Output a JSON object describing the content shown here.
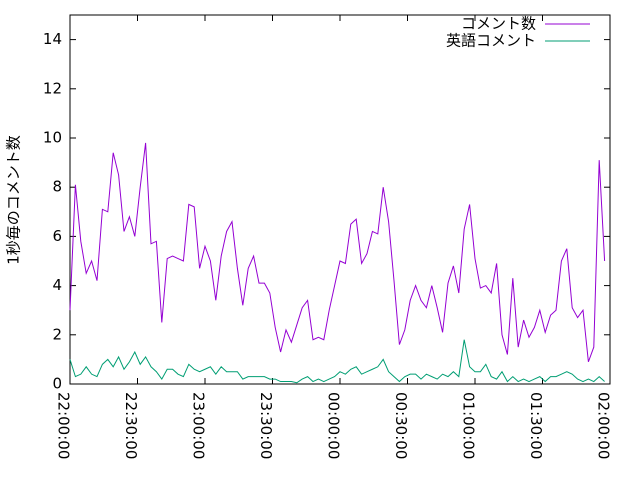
{
  "chart_data": {
    "type": "line",
    "ylabel": "1秒毎のコメント数",
    "x": [
      "22:00:00",
      "22:02:24",
      "22:04:48",
      "22:07:12",
      "22:09:36",
      "22:12:00",
      "22:14:24",
      "22:16:48",
      "22:19:12",
      "22:21:36",
      "22:24:00",
      "22:26:24",
      "22:28:48",
      "22:31:12",
      "22:33:36",
      "22:36:00",
      "22:38:24",
      "22:40:48",
      "22:43:12",
      "22:45:36",
      "22:48:00",
      "22:50:24",
      "22:52:48",
      "22:55:12",
      "22:57:36",
      "23:00:00",
      "23:02:24",
      "23:04:48",
      "23:07:12",
      "23:09:36",
      "23:12:00",
      "23:14:24",
      "23:16:48",
      "23:19:12",
      "23:21:36",
      "23:24:00",
      "23:26:24",
      "23:28:48",
      "23:31:12",
      "23:33:36",
      "23:36:00",
      "23:38:24",
      "23:40:48",
      "23:43:12",
      "23:45:36",
      "23:48:00",
      "23:50:24",
      "23:52:48",
      "23:55:12",
      "23:57:36",
      "00:00:00",
      "00:02:24",
      "00:04:48",
      "00:07:12",
      "00:09:36",
      "00:12:00",
      "00:14:24",
      "00:16:48",
      "00:19:12",
      "00:21:36",
      "00:24:00",
      "00:26:24",
      "00:28:48",
      "00:31:12",
      "00:33:36",
      "00:36:00",
      "00:38:24",
      "00:40:48",
      "00:43:12",
      "00:45:36",
      "00:48:00",
      "00:50:24",
      "00:52:48",
      "00:55:12",
      "00:57:36",
      "01:00:00",
      "01:02:24",
      "01:04:48",
      "01:07:12",
      "01:09:36",
      "01:12:00",
      "01:14:24",
      "01:16:48",
      "01:19:12",
      "01:21:36",
      "01:24:00",
      "01:26:24",
      "01:28:48",
      "01:31:12",
      "01:33:36",
      "01:36:00",
      "01:38:24",
      "01:40:48",
      "01:43:12",
      "01:45:36",
      "01:48:00",
      "01:50:24",
      "01:52:48",
      "01:55:12",
      "01:57:36"
    ],
    "series": [
      {
        "name": "コメント数",
        "color": "#9400d3",
        "values": [
          3.0,
          8.1,
          5.8,
          4.5,
          5.0,
          4.2,
          7.1,
          7.0,
          9.4,
          8.5,
          6.2,
          6.8,
          6.0,
          8.0,
          9.8,
          5.7,
          5.8,
          2.5,
          5.1,
          5.2,
          5.1,
          5.0,
          7.3,
          7.2,
          4.7,
          5.6,
          5.0,
          3.4,
          5.2,
          6.2,
          6.6,
          4.7,
          3.2,
          4.7,
          5.2,
          4.1,
          4.1,
          3.7,
          2.3,
          1.3,
          2.2,
          1.7,
          2.4,
          3.1,
          3.4,
          1.8,
          1.9,
          1.8,
          3.0,
          4.0,
          5.0,
          4.9,
          6.5,
          6.7,
          4.9,
          5.3,
          6.2,
          6.1,
          8.0,
          6.6,
          4.2,
          1.6,
          2.2,
          3.4,
          4.0,
          3.4,
          3.1,
          4.0,
          3.1,
          2.1,
          4.1,
          4.8,
          3.7,
          6.3,
          7.3,
          5.1,
          3.9,
          4.0,
          3.7,
          4.9,
          2.0,
          1.2,
          4.3,
          1.5,
          2.6,
          1.9,
          2.3,
          3.0,
          2.1,
          2.8,
          3.0,
          5.0,
          5.5,
          3.1,
          2.7,
          3.0,
          0.9,
          1.5,
          9.1,
          5.0
        ]
      },
      {
        "name": "英語コメント",
        "color": "#009e73",
        "values": [
          1.0,
          0.3,
          0.4,
          0.7,
          0.4,
          0.3,
          0.8,
          1.0,
          0.7,
          1.1,
          0.6,
          0.9,
          1.3,
          0.8,
          1.1,
          0.7,
          0.5,
          0.2,
          0.6,
          0.6,
          0.4,
          0.3,
          0.8,
          0.6,
          0.5,
          0.6,
          0.7,
          0.4,
          0.7,
          0.5,
          0.5,
          0.5,
          0.2,
          0.3,
          0.3,
          0.3,
          0.3,
          0.2,
          0.2,
          0.1,
          0.1,
          0.1,
          0.05,
          0.2,
          0.3,
          0.1,
          0.2,
          0.1,
          0.2,
          0.3,
          0.5,
          0.4,
          0.6,
          0.7,
          0.4,
          0.5,
          0.6,
          0.7,
          1.0,
          0.5,
          0.3,
          0.1,
          0.3,
          0.4,
          0.4,
          0.2,
          0.4,
          0.3,
          0.2,
          0.4,
          0.3,
          0.5,
          0.3,
          1.8,
          0.7,
          0.5,
          0.5,
          0.8,
          0.3,
          0.2,
          0.5,
          0.1,
          0.3,
          0.1,
          0.2,
          0.1,
          0.2,
          0.3,
          0.1,
          0.3,
          0.3,
          0.4,
          0.5,
          0.4,
          0.2,
          0.1,
          0.2,
          0.1,
          0.3,
          0.1
        ]
      }
    ],
    "xlim": [
      "22:00:00",
      "02:00:00"
    ],
    "xticks": [
      "22:00:00",
      "22:30:00",
      "23:00:00",
      "23:30:00",
      "00:00:00",
      "00:30:00",
      "01:00:00",
      "01:30:00",
      "02:00:00"
    ],
    "ylim": [
      0,
      15
    ],
    "yticks": [
      0,
      2,
      4,
      6,
      8,
      10,
      12,
      14
    ],
    "legend": "top-right"
  }
}
